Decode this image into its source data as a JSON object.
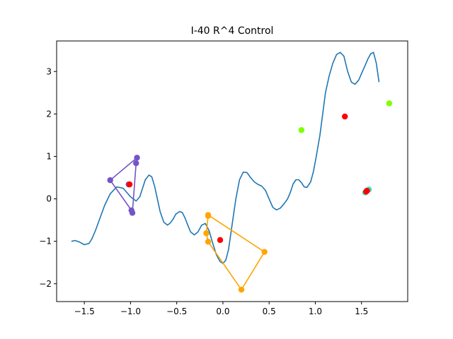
{
  "chart_data": {
    "type": "line",
    "title": "I-40 R^4 Control",
    "xlabel": "",
    "ylabel": "",
    "xlim": [
      -1.8,
      2.0
    ],
    "ylim": [
      -2.42,
      3.72
    ],
    "xticks": [
      -1.5,
      -1.0,
      -0.5,
      0.0,
      0.5,
      1.0,
      1.5
    ],
    "xtick_labels": [
      "−1.5",
      "−1.0",
      "−0.5",
      "0.0",
      "0.5",
      "1.0",
      "1.5"
    ],
    "yticks": [
      -2,
      -1,
      0,
      1,
      2,
      3
    ],
    "ytick_labels": [
      "−2",
      "−1",
      "0",
      "1",
      "2",
      "3"
    ],
    "grid": false,
    "legend": "none",
    "curve": {
      "color": "#1f77b4",
      "x": [
        -1.64,
        -1.6,
        -1.55,
        -1.5,
        -1.45,
        -1.42,
        -1.38,
        -1.33,
        -1.28,
        -1.22,
        -1.15,
        -1.08,
        -1.0,
        -0.94,
        -0.9,
        -0.87,
        -0.84,
        -0.8,
        -0.77,
        -0.74,
        -0.71,
        -0.68,
        -0.64,
        -0.6,
        -0.57,
        -0.54,
        -0.51,
        -0.47,
        -0.44,
        -0.41,
        -0.38,
        -0.35,
        -0.31,
        -0.27,
        -0.23,
        -0.19,
        -0.15,
        -0.11,
        -0.07,
        -0.03,
        0.0,
        0.03,
        0.06,
        0.1,
        0.14,
        0.18,
        0.22,
        0.26,
        0.3,
        0.34,
        0.38,
        0.42,
        0.46,
        0.5,
        0.54,
        0.58,
        0.62,
        0.66,
        0.7,
        0.73,
        0.76,
        0.79,
        0.82,
        0.85,
        0.88,
        0.91,
        0.95,
        0.98,
        1.01,
        1.05,
        1.08,
        1.11,
        1.15,
        1.19,
        1.23,
        1.27,
        1.31,
        1.35,
        1.39,
        1.43,
        1.47,
        1.51,
        1.54,
        1.57,
        1.6,
        1.63,
        1.66,
        1.69
      ],
      "y": [
        -1.0,
        -0.98,
        -1.02,
        -1.08,
        -1.05,
        -0.95,
        -0.75,
        -0.45,
        -0.15,
        0.12,
        0.28,
        0.25,
        0.05,
        -0.05,
        0.05,
        0.25,
        0.45,
        0.56,
        0.52,
        0.3,
        0.0,
        -0.3,
        -0.55,
        -0.62,
        -0.57,
        -0.48,
        -0.36,
        -0.3,
        -0.32,
        -0.45,
        -0.62,
        -0.78,
        -0.85,
        -0.78,
        -0.62,
        -0.58,
        -0.75,
        -1.05,
        -1.32,
        -1.48,
        -1.52,
        -1.45,
        -1.2,
        -0.6,
        0.0,
        0.45,
        0.63,
        0.62,
        0.5,
        0.4,
        0.34,
        0.3,
        0.2,
        0.0,
        -0.2,
        -0.26,
        -0.22,
        -0.12,
        0.0,
        0.15,
        0.35,
        0.45,
        0.45,
        0.38,
        0.28,
        0.27,
        0.4,
        0.65,
        1.0,
        1.5,
        2.0,
        2.5,
        2.9,
        3.2,
        3.4,
        3.45,
        3.36,
        3.0,
        2.75,
        2.7,
        2.8,
        3.0,
        3.15,
        3.3,
        3.42,
        3.45,
        3.2,
        2.75
      ]
    },
    "polygons": [
      {
        "color": "#7355c6",
        "closed": true,
        "points": [
          [
            -0.93,
            0.97
          ],
          [
            -1.22,
            0.44
          ],
          [
            -0.99,
            -0.27
          ],
          [
            -0.98,
            -0.33
          ],
          [
            -0.94,
            0.84
          ]
        ]
      },
      {
        "color": "#ffa500",
        "closed": true,
        "points": [
          [
            -0.16,
            -0.4
          ],
          [
            -0.18,
            -0.81
          ],
          [
            -0.16,
            -1.01
          ],
          [
            0.2,
            -2.14
          ],
          [
            0.45,
            -1.25
          ],
          [
            -0.16,
            -0.38
          ]
        ]
      }
    ],
    "scatter_groups": [
      {
        "color": "#7fff00",
        "points": [
          [
            0.85,
            1.62
          ],
          [
            1.8,
            2.25
          ]
        ]
      },
      {
        "color": "#40e0d0",
        "points": [
          [
            1.54,
            0.15
          ],
          [
            1.56,
            0.2
          ],
          [
            1.58,
            0.22
          ]
        ]
      },
      {
        "color": "#7355c6",
        "points": [
          [
            -1.02,
            0.34
          ]
        ]
      },
      {
        "color": "#ff0000",
        "points": [
          [
            -1.01,
            0.34
          ],
          [
            -0.03,
            -0.97
          ],
          [
            1.32,
            1.94
          ],
          [
            1.55,
            0.17
          ],
          [
            1.56,
            0.19
          ]
        ]
      }
    ]
  }
}
